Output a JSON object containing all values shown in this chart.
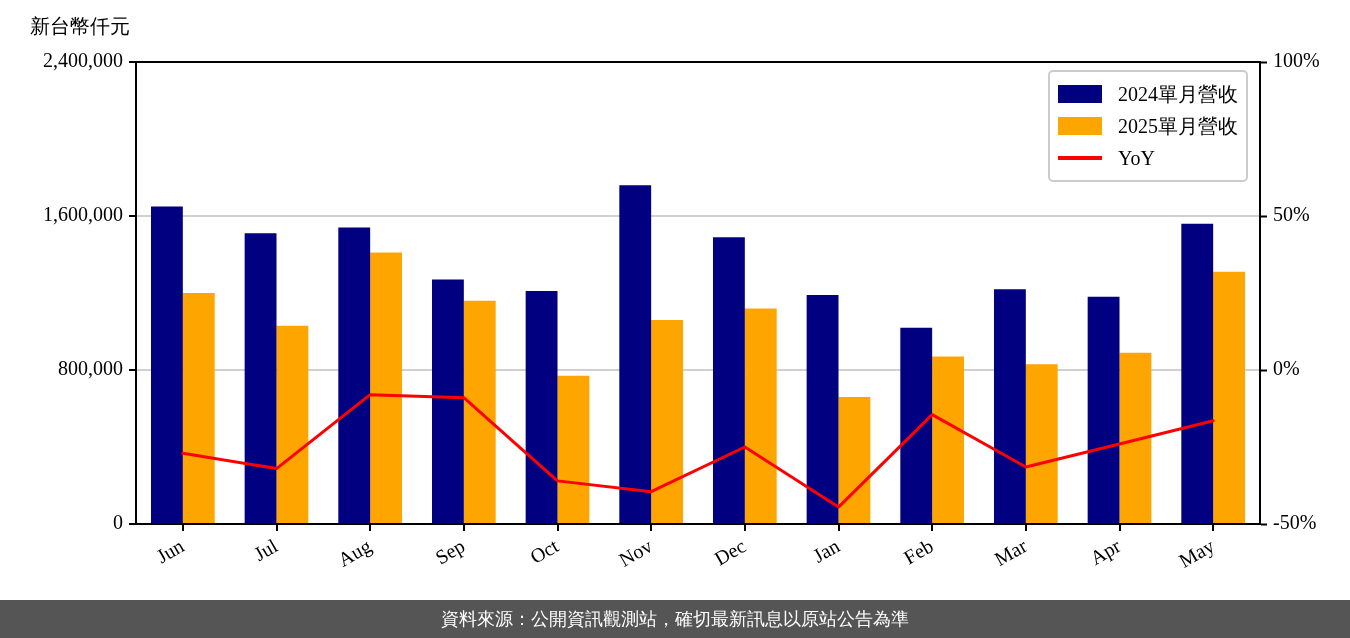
{
  "chart_data": {
    "type": "bar",
    "ylabel": "新台幣仟元",
    "categories": [
      "Jun",
      "Jul",
      "Aug",
      "Sep",
      "Oct",
      "Nov",
      "Dec",
      "Jan",
      "Feb",
      "Mar",
      "Apr",
      "May"
    ],
    "series": [
      {
        "name": "2024單月營收",
        "color": "#000080",
        "values": [
          1650000,
          1510000,
          1540000,
          1270000,
          1210000,
          1760000,
          1490000,
          1190000,
          1020000,
          1220000,
          1180000,
          1560000
        ]
      },
      {
        "name": "2025單月營收",
        "color": "#ffa500",
        "values": [
          1200000,
          1030000,
          1410000,
          1160000,
          770000,
          1060000,
          1120000,
          660000,
          870000,
          830000,
          890000,
          1310000
        ]
      },
      {
        "name": "YoY",
        "type": "line",
        "axis": "y2",
        "color": "#ff0000",
        "values": [
          -27,
          -32,
          -8,
          -9,
          -36,
          -39.5,
          -25,
          -44.5,
          -14.5,
          -31.5,
          -24,
          -16.5
        ]
      }
    ],
    "ylim": [
      0,
      2400000
    ],
    "yticks": [
      0,
      {
        "value": 800000,
        "label": "800,000"
      },
      {
        "value": 1600000,
        "label": "1,600,000"
      },
      {
        "value": 2400000,
        "label": "2,400,000"
      }
    ],
    "y2lim": [
      -50,
      100
    ],
    "y2ticks": [
      {
        "value": -50,
        "label": "-50%"
      },
      {
        "value": 0,
        "label": "0%"
      },
      {
        "value": 50,
        "label": "50%"
      },
      {
        "value": 100,
        "label": "100%"
      }
    ],
    "grid": "y",
    "legend": "top right",
    "marker": "none",
    "line_style": "solid",
    "annotations": [
      "資料來源：公開資訊觀測站，確切最新訊息以原站公告為準"
    ]
  }
}
